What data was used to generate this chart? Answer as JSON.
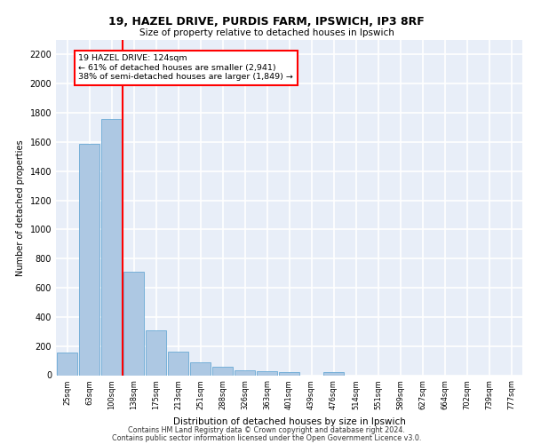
{
  "title_line1": "19, HAZEL DRIVE, PURDIS FARM, IPSWICH, IP3 8RF",
  "title_line2": "Size of property relative to detached houses in Ipswich",
  "xlabel": "Distribution of detached houses by size in Ipswich",
  "ylabel": "Number of detached properties",
  "categories": [
    "25sqm",
    "63sqm",
    "100sqm",
    "138sqm",
    "175sqm",
    "213sqm",
    "251sqm",
    "288sqm",
    "326sqm",
    "363sqm",
    "401sqm",
    "439sqm",
    "476sqm",
    "514sqm",
    "551sqm",
    "589sqm",
    "627sqm",
    "664sqm",
    "702sqm",
    "739sqm",
    "777sqm"
  ],
  "values": [
    155,
    1585,
    1755,
    710,
    310,
    160,
    90,
    55,
    35,
    25,
    20,
    0,
    20,
    0,
    0,
    0,
    0,
    0,
    0,
    0,
    0
  ],
  "bar_color": "#adc8e3",
  "bar_edge_color": "#6aaad4",
  "red_line_index": 2.5,
  "annotation_text": "19 HAZEL DRIVE: 124sqm\n← 61% of detached houses are smaller (2,941)\n38% of semi-detached houses are larger (1,849) →",
  "ylim": [
    0,
    2300
  ],
  "yticks": [
    0,
    200,
    400,
    600,
    800,
    1000,
    1200,
    1400,
    1600,
    1800,
    2000,
    2200
  ],
  "background_color": "#e8eef8",
  "grid_color": "#ffffff",
  "footer_line1": "Contains HM Land Registry data © Crown copyright and database right 2024.",
  "footer_line2": "Contains public sector information licensed under the Open Government Licence v3.0."
}
